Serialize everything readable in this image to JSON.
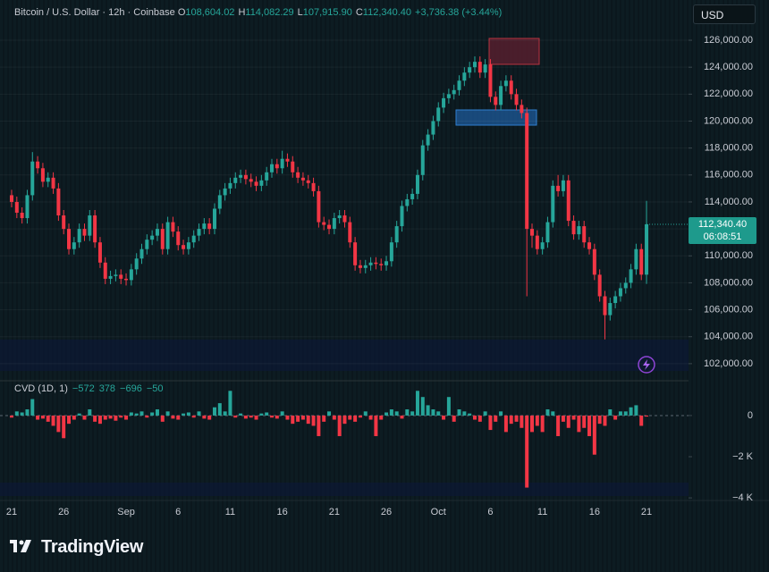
{
  "chart_data": [
    {
      "type": "candlestick",
      "title": "Bitcoin / U.S. Dollar · 12h · Coinbase",
      "legend_fields": [
        {
          "label": "O",
          "value": "108,604.02"
        },
        {
          "label": "H",
          "value": "114,082.29"
        },
        {
          "label": "L",
          "value": "107,915.90"
        },
        {
          "label": "C",
          "value": "112,340.40"
        }
      ],
      "change": "+3,736.38 (+3.44%)",
      "price_label": "112,340.40",
      "countdown": "06:08:51",
      "up_color": "#26a69a",
      "down_color": "#f23645",
      "grid": true,
      "categories": [
        "21",
        null,
        null,
        null,
        null,
        null,
        null,
        null,
        null,
        null,
        "26",
        null,
        null,
        null,
        null,
        null,
        null,
        null,
        null,
        null,
        null,
        null,
        "Sep",
        null,
        null,
        null,
        null,
        null,
        null,
        null,
        null,
        null,
        "6",
        null,
        null,
        null,
        null,
        null,
        null,
        null,
        null,
        null,
        "11",
        null,
        null,
        null,
        null,
        null,
        null,
        null,
        null,
        null,
        "16",
        null,
        null,
        null,
        null,
        null,
        null,
        null,
        null,
        null,
        "21",
        null,
        null,
        null,
        null,
        null,
        null,
        null,
        null,
        null,
        "26",
        null,
        null,
        null,
        null,
        null,
        null,
        null,
        null,
        null,
        "Oct",
        null,
        null,
        null,
        null,
        null,
        null,
        null,
        null,
        null,
        "6",
        null,
        null,
        null,
        null,
        null,
        null,
        null,
        null,
        null,
        "11",
        null,
        null,
        null,
        null,
        null,
        null,
        null,
        null,
        null,
        "16",
        null,
        null,
        null,
        null,
        null,
        null,
        null,
        null,
        null,
        "21"
      ],
      "open": [
        114500,
        114000,
        113200,
        112800,
        114500,
        117000,
        116500,
        115500,
        115800,
        115000,
        113000,
        112000,
        110500,
        111000,
        112000,
        111500,
        113000,
        111000,
        109500,
        108300,
        108500,
        108600,
        108300,
        108200,
        109000,
        109800,
        110500,
        111200,
        111500,
        112000,
        110500,
        112500,
        111800,
        110800,
        110500,
        111000,
        111500,
        112000,
        112400,
        112000,
        113500,
        114500,
        115000,
        115400,
        115800,
        116000,
        115700,
        115500,
        115200,
        115600,
        116200,
        116800,
        116500,
        117200,
        117000,
        116200,
        115800,
        115600,
        115400,
        114800,
        112500,
        112300,
        112000,
        112800,
        113000,
        112500,
        111000,
        109300,
        109100,
        109300,
        109500,
        109400,
        109300,
        109600,
        111000,
        112200,
        113700,
        114200,
        114600,
        116000,
        118200,
        119000,
        120000,
        121000,
        121700,
        122000,
        122300,
        123000,
        123600,
        124000,
        124400,
        123600,
        124200,
        121800,
        121200,
        122600,
        123000,
        122000,
        121200,
        120600,
        112000,
        111500,
        110500,
        111000,
        112500,
        115200,
        114800,
        115600,
        112600,
        111600,
        112200,
        111000,
        110500,
        108600,
        107000,
        105600,
        106500,
        107000,
        107600,
        108000,
        109000,
        110500,
        108604.02
      ],
      "high": [
        114900,
        114400,
        113600,
        114900,
        117700,
        117400,
        116900,
        116200,
        116200,
        115400,
        113400,
        112400,
        111400,
        112400,
        112400,
        113400,
        113400,
        111400,
        109900,
        108900,
        109000,
        109000,
        108700,
        109400,
        110200,
        110900,
        111600,
        111900,
        112400,
        112400,
        112900,
        112900,
        112200,
        111200,
        111400,
        111900,
        112400,
        112800,
        112800,
        113900,
        114900,
        115400,
        115800,
        116200,
        116400,
        116400,
        116100,
        115900,
        116000,
        116600,
        117200,
        117200,
        117800,
        117600,
        117400,
        116600,
        116200,
        116000,
        115800,
        115200,
        112900,
        112700,
        113200,
        113400,
        113400,
        112900,
        111400,
        109700,
        109700,
        109900,
        109900,
        109800,
        110000,
        111400,
        112600,
        114100,
        114600,
        115000,
        116400,
        118600,
        119400,
        120400,
        121400,
        122100,
        122400,
        122700,
        123400,
        124000,
        124400,
        124800,
        124800,
        124600,
        124600,
        122200,
        123000,
        123400,
        123400,
        122400,
        121600,
        121000,
        112400,
        111900,
        111400,
        112900,
        115600,
        116000,
        116000,
        116000,
        113000,
        112600,
        112600,
        111400,
        110900,
        109000,
        107400,
        106900,
        107400,
        108000,
        108400,
        109400,
        110900,
        110900,
        114082.29
      ],
      "low": [
        113600,
        112800,
        112400,
        112400,
        114100,
        116100,
        115100,
        115100,
        114600,
        112600,
        111600,
        110100,
        110100,
        110600,
        111100,
        111100,
        110600,
        109100,
        107900,
        107900,
        108100,
        107900,
        107800,
        107800,
        108600,
        109400,
        110100,
        110800,
        111100,
        110100,
        110100,
        111400,
        110400,
        110100,
        110100,
        110600,
        111100,
        111600,
        111600,
        111600,
        113100,
        114100,
        114600,
        115000,
        115400,
        115300,
        115100,
        114800,
        114800,
        115200,
        115800,
        116100,
        116100,
        116600,
        115800,
        115400,
        115200,
        115000,
        114400,
        112100,
        111900,
        111600,
        111600,
        112400,
        112100,
        110600,
        108900,
        108700,
        108700,
        108900,
        109000,
        108900,
        108900,
        109200,
        110600,
        111800,
        113300,
        113800,
        114200,
        115600,
        117800,
        118600,
        119600,
        120600,
        121300,
        121600,
        121900,
        122600,
        123200,
        123600,
        123200,
        123200,
        121400,
        120800,
        120800,
        122200,
        121600,
        120800,
        120200,
        107000,
        110600,
        110100,
        110100,
        110600,
        112100,
        114400,
        114400,
        112200,
        111200,
        111200,
        110600,
        110100,
        108200,
        106600,
        103800,
        105200,
        106100,
        106600,
        107200,
        107600,
        108600,
        108200,
        107915.9
      ],
      "close": [
        114000,
        113200,
        112800,
        114500,
        117000,
        116500,
        115500,
        115800,
        115000,
        113000,
        112000,
        110500,
        111000,
        112000,
        111500,
        113000,
        111000,
        109500,
        108300,
        108500,
        108600,
        108300,
        108200,
        109000,
        109800,
        110500,
        111200,
        111500,
        112000,
        110500,
        112500,
        111800,
        110800,
        110500,
        111000,
        111500,
        112000,
        112400,
        112000,
        113500,
        114500,
        115000,
        115400,
        115800,
        116000,
        115700,
        115500,
        115200,
        115600,
        116200,
        116800,
        116500,
        117200,
        117000,
        116200,
        115800,
        115600,
        115400,
        114800,
        112500,
        112300,
        112000,
        112800,
        113000,
        112500,
        111000,
        109300,
        109100,
        109300,
        109500,
        109400,
        109300,
        109600,
        111000,
        112200,
        113700,
        114200,
        114600,
        116000,
        118200,
        119000,
        120000,
        121000,
        121700,
        122000,
        122300,
        123000,
        123600,
        124000,
        124400,
        123600,
        124200,
        121800,
        121200,
        122600,
        123000,
        122000,
        121200,
        120600,
        112000,
        111500,
        110500,
        111000,
        112500,
        115200,
        114800,
        115600,
        112600,
        111600,
        112200,
        111000,
        110500,
        108600,
        107000,
        105600,
        106500,
        107000,
        107600,
        108000,
        109000,
        110500,
        108604.02,
        112340.4
      ],
      "ylim": [
        101130,
        127660
      ],
      "yticks": [
        {
          "value": 102000,
          "label": "102,000.00"
        },
        {
          "value": 104000,
          "label": "104,000.00"
        },
        {
          "value": 106000,
          "label": "106,000.00"
        },
        {
          "value": 108000,
          "label": "108,000.00"
        },
        {
          "value": 110000,
          "label": "110,000.00"
        },
        {
          "value": 112000,
          "label": "112,000.00"
        },
        {
          "value": 114000,
          "label": "114,000.00"
        },
        {
          "value": 116000,
          "label": "116,000.00"
        },
        {
          "value": 118000,
          "label": "118,000.00"
        },
        {
          "value": 120000,
          "label": "120,000.00"
        },
        {
          "value": 122000,
          "label": "122,000.00"
        },
        {
          "value": 124000,
          "label": "124,000.00"
        },
        {
          "value": 126000,
          "label": "126,000.00"
        }
      ]
    },
    {
      "type": "bar",
      "title": "CVD (1D, 1)",
      "legend_values": [
        "−572",
        "378",
        "−696",
        "−50"
      ],
      "up_color": "#26a69a",
      "down_color": "#f23645",
      "values": [
        -100,
        200,
        150,
        300,
        800,
        -200,
        -150,
        -300,
        -500,
        -800,
        -1100,
        -400,
        -200,
        100,
        -200,
        300,
        -300,
        -400,
        -200,
        -150,
        -250,
        -100,
        -200,
        150,
        100,
        200,
        -100,
        150,
        300,
        -300,
        200,
        -150,
        -200,
        100,
        150,
        -100,
        200,
        -150,
        -200,
        400,
        600,
        200,
        1200,
        -100,
        100,
        -150,
        -100,
        -200,
        100,
        150,
        -100,
        -150,
        200,
        -200,
        -400,
        -300,
        -200,
        -400,
        -500,
        -1000,
        -300,
        200,
        -200,
        -1000,
        -400,
        -200,
        -300,
        -100,
        200,
        -200,
        -1000,
        -200,
        150,
        300,
        200,
        -150,
        300,
        200,
        1200,
        900,
        500,
        300,
        200,
        -200,
        900,
        -300,
        300,
        200,
        100,
        -200,
        -300,
        200,
        -700,
        -300,
        200,
        -800,
        -400,
        -300,
        -600,
        -3500,
        -800,
        -500,
        -800,
        300,
        200,
        -1000,
        -300,
        -600,
        -200,
        -800,
        -600,
        -1000,
        -1900,
        -400,
        -500,
        300,
        -200,
        200,
        200,
        400,
        500,
        -500,
        -50
      ],
      "ylim": [
        -4040,
        1430
      ],
      "yticks": [
        {
          "value": -4000,
          "label": "−4 K"
        },
        {
          "value": -2000,
          "label": "−2 K"
        },
        0
      ]
    }
  ],
  "currency": "USD",
  "brand": "TradingView"
}
